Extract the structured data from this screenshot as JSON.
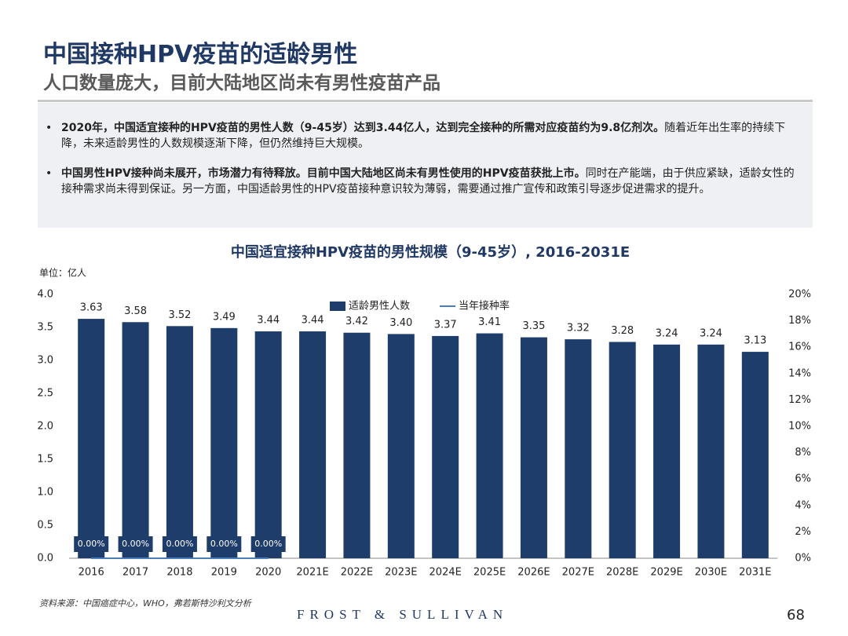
{
  "header": {
    "title": "中国接种HPV疫苗的适龄男性",
    "subtitle": "人口数量庞大，目前大陆地区尚未有男性疫苗产品"
  },
  "bullets": [
    {
      "bold": "2020年，中国适宜接种的HPV疫苗的男性人数（9-45岁）达到3.44亿人，达到完全接种的所需对应疫苗约为9.8亿剂次。",
      "text": "随着近年出生率的持续下降，未来适龄男性的人数规模逐渐下降，但仍然维持巨大规模。"
    },
    {
      "bold": "中国男性HPV接种尚未展开，市场潜力有待释放。目前中国大陆地区尚未有男性使用的HPV疫苗获批上市。",
      "text": "同时在产能端，由于供应紧缺，适龄女性的接种需求尚未得到保证。另一方面，中国适龄男性的HPV疫苗接种意识较为薄弱，需要通过推广宣传和政策引导逐步促进需求的提升。"
    }
  ],
  "chart_data": {
    "type": "bar",
    "title": "中国适宜接种HPV疫苗的男性规模（9-45岁）, 2016-2031E",
    "y_label": "单位：亿人",
    "categories": [
      "2016",
      "2017",
      "2018",
      "2019",
      "2020",
      "2021E",
      "2022E",
      "2023E",
      "2024E",
      "2025E",
      "2026E",
      "2027E",
      "2028E",
      "2029E",
      "2030E",
      "2031E"
    ],
    "series": [
      {
        "name": "适龄男性人数",
        "color": "#1f3d6b",
        "values": [
          3.63,
          3.58,
          3.52,
          3.49,
          3.44,
          3.44,
          3.42,
          3.4,
          3.37,
          3.41,
          3.35,
          3.32,
          3.28,
          3.24,
          3.24,
          3.13
        ],
        "value_labels": [
          "3.63",
          "3.58",
          "3.52",
          "3.49",
          "3.44",
          "3.44",
          "3.42",
          "3.40",
          "3.37",
          "3.41",
          "3.35",
          "3.32",
          "3.28",
          "3.24",
          "3.24",
          "3.13"
        ]
      },
      {
        "name": "当年接种率",
        "color": "#4a7ebb",
        "type": "line",
        "axis": "y2",
        "values": [
          0,
          0,
          0,
          0,
          0,
          null,
          null,
          null,
          null,
          null,
          null,
          null,
          null,
          null,
          null,
          null
        ],
        "value_labels": [
          "0.00%",
          "0.00%",
          "0.00%",
          "0.00%",
          "0.00%",
          null,
          null,
          null,
          null,
          null,
          null,
          null,
          null,
          null,
          null,
          null
        ]
      }
    ],
    "ylim": [
      0,
      4
    ],
    "yticks": [
      {
        "value": 0,
        "label": "0.0"
      },
      0.5,
      {
        "value": 1,
        "label": "1.0"
      },
      1.5,
      {
        "value": 2,
        "label": "2.0"
      },
      2.5,
      {
        "value": 3,
        "label": "3.0"
      },
      3.5,
      {
        "value": 4,
        "label": "4.0"
      }
    ],
    "y2lim": [
      0,
      20
    ],
    "y2ticks": [
      {
        "value": 0,
        "label": "0%"
      },
      {
        "value": 2,
        "label": "2%"
      },
      {
        "value": 4,
        "label": "4%"
      },
      {
        "value": 6,
        "label": "6%"
      },
      {
        "value": 8,
        "label": "8%"
      },
      {
        "value": 10,
        "label": "10%"
      },
      {
        "value": 12,
        "label": "12%"
      },
      {
        "value": 14,
        "label": "14%"
      },
      {
        "value": 16,
        "label": "16%"
      },
      {
        "value": 18,
        "label": "18%"
      },
      {
        "value": 20,
        "label": "20%"
      }
    ],
    "legend": "top"
  },
  "footer": {
    "source": "资料来源：中国癌症中心，WHO，弗若斯特沙利文分析",
    "logo": "FROST & SULLIVAN",
    "page": "68"
  }
}
